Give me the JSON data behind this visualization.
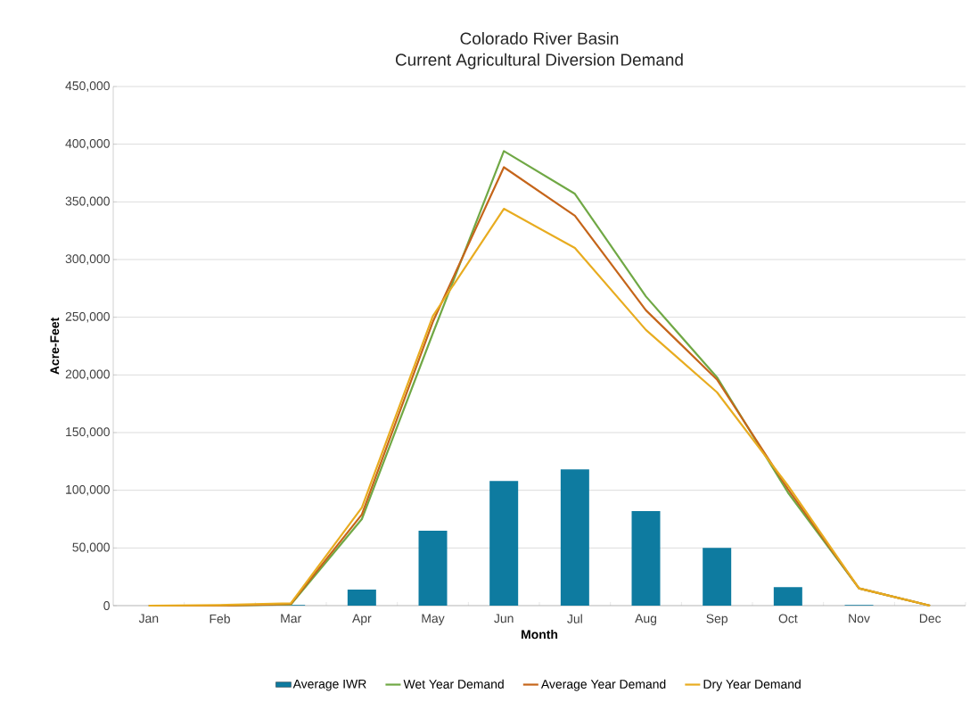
{
  "chart_data": {
    "type": "line",
    "title": "Colorado River Basin\nCurrent Agricultural Diversion Demand",
    "xlabel": "Month",
    "ylabel": "Acre-Feet",
    "categories": [
      "Jan",
      "Feb",
      "Mar",
      "Apr",
      "May",
      "Jun",
      "Jul",
      "Aug",
      "Sep",
      "Oct",
      "Nov",
      "Dec"
    ],
    "series": [
      {
        "name": "Average IWR",
        "type": "bar",
        "color": "#0e7ba0",
        "values": [
          0,
          0,
          500,
          14000,
          65000,
          108000,
          118000,
          82000,
          50000,
          16000,
          500,
          0
        ]
      },
      {
        "name": "Wet Year Demand",
        "color": "#70a845",
        "values": [
          0,
          0,
          1000,
          75000,
          236000,
          394000,
          357000,
          268000,
          198000,
          98000,
          15000,
          0
        ]
      },
      {
        "name": "Average Year Demand",
        "color": "#c5651a",
        "values": [
          0,
          0,
          1500,
          79000,
          246000,
          380000,
          338000,
          256000,
          196000,
          101000,
          15000,
          0
        ]
      },
      {
        "name": "Dry Year Demand",
        "color": "#e8ac20",
        "values": [
          0,
          500,
          2000,
          85000,
          251000,
          344000,
          310000,
          239000,
          185000,
          104000,
          15000,
          0
        ]
      }
    ],
    "ylim": [
      0,
      450000
    ],
    "yticks": [
      {
        "value": 0,
        "label": "0"
      },
      {
        "value": 50000,
        "label": "50,000"
      },
      {
        "value": 100000,
        "label": "100,000"
      },
      {
        "value": 150000,
        "label": "150,000"
      },
      {
        "value": 200000,
        "label": "200,000"
      },
      {
        "value": 250000,
        "label": "250,000"
      },
      {
        "value": 300000,
        "label": "300,000"
      },
      {
        "value": 350000,
        "label": "350,000"
      },
      {
        "value": 400000,
        "label": "400,000"
      },
      {
        "value": 450000,
        "label": "450,000"
      }
    ],
    "grid": "y",
    "legend": "bottom"
  }
}
